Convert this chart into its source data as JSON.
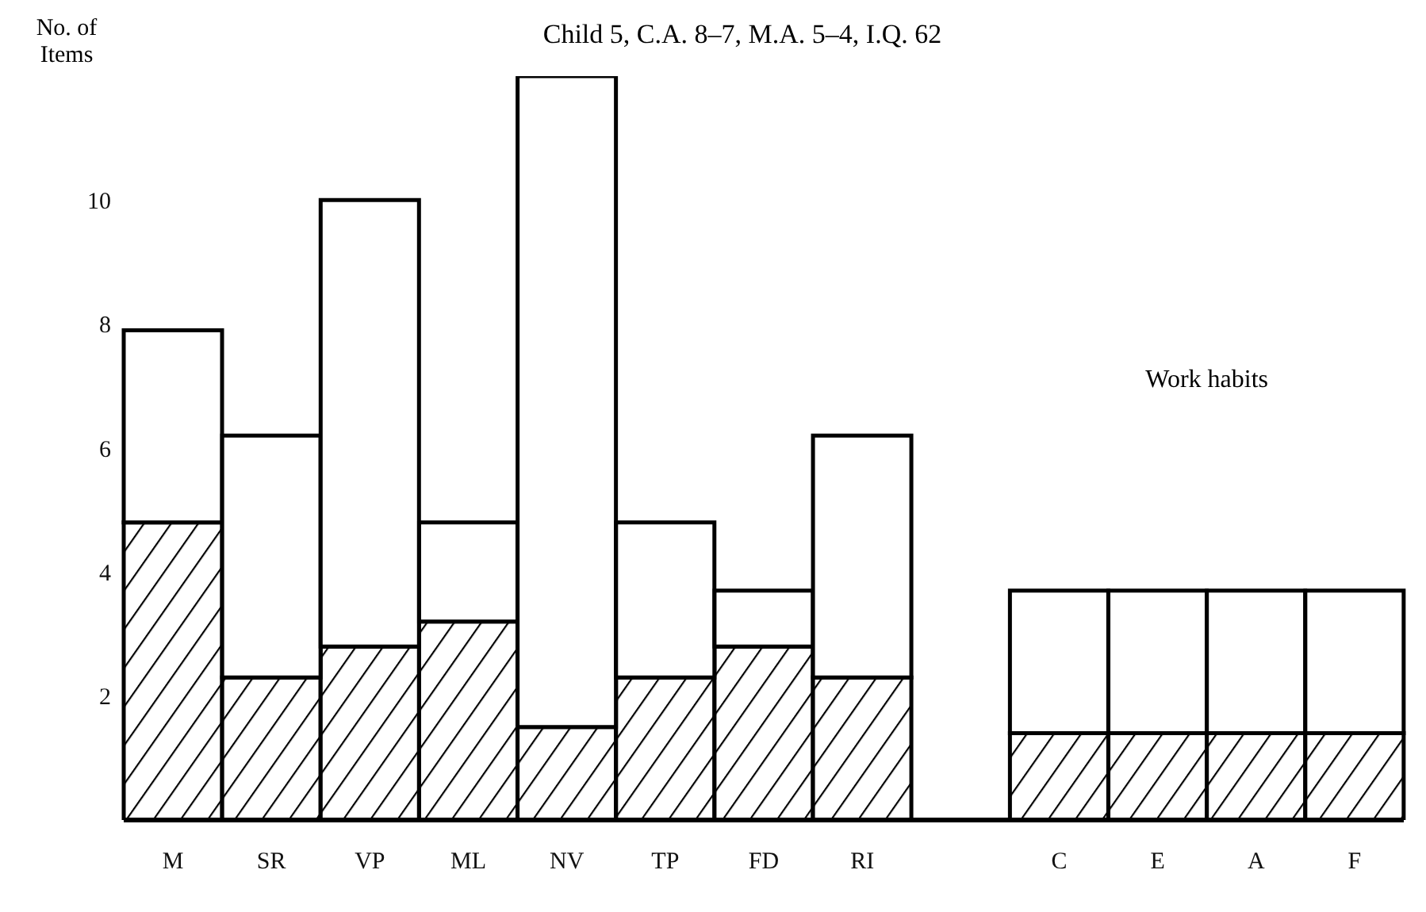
{
  "chart_data": {
    "type": "bar",
    "title": "Child 5, C.A. 8–7, M.A. 5–4, I.Q. 62",
    "ylabel": "No. of Items",
    "annotations": [
      "Work habits"
    ],
    "categories": [
      "M",
      "SR",
      "VP",
      "ML",
      "NV",
      "TP",
      "FD",
      "RI",
      null,
      "C",
      "E",
      "A",
      "F"
    ],
    "stacked": true,
    "ylim": [
      0,
      12
    ],
    "yticks": [
      2,
      4,
      6,
      8,
      10
    ],
    "grid": false,
    "legend": false,
    "series": [
      {
        "color": "#000000",
        "values": [
          4.8,
          2.3,
          2.8,
          3.2,
          1.5,
          2.3,
          2.8,
          2.3,
          null,
          1.4,
          1.4,
          1.4,
          1.4
        ]
      },
      {
        "color": "#ffffff",
        "values": [
          3.1,
          3.9,
          7.2,
          1.6,
          10.5,
          2.5,
          0.9,
          3.9,
          null,
          2.3,
          2.3,
          2.3,
          2.3
        ]
      }
    ]
  }
}
